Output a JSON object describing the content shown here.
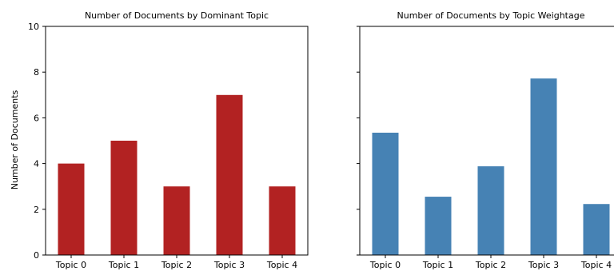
{
  "chart_data": [
    {
      "type": "bar",
      "title": "Number of Documents by Dominant Topic",
      "categories": [
        "Topic 0",
        "Topic 1",
        "Topic 2",
        "Topic 3",
        "Topic 4"
      ],
      "values": [
        4,
        5,
        3,
        7,
        3
      ],
      "ylabel": "Number of Documents",
      "ylim": [
        0,
        10
      ],
      "yticks": [
        "0",
        "2",
        "4",
        "6",
        "8",
        "10"
      ],
      "color": "#b22222"
    },
    {
      "type": "bar",
      "title": "Number of Documents by Topic Weightage",
      "categories": [
        "Topic 0",
        "Topic 1",
        "Topic 2",
        "Topic 3",
        "Topic 4"
      ],
      "values": [
        5.35,
        2.55,
        3.88,
        7.72,
        2.23
      ],
      "ylabel": "",
      "ylim": [
        0,
        10
      ],
      "color": "#4682b4"
    }
  ]
}
